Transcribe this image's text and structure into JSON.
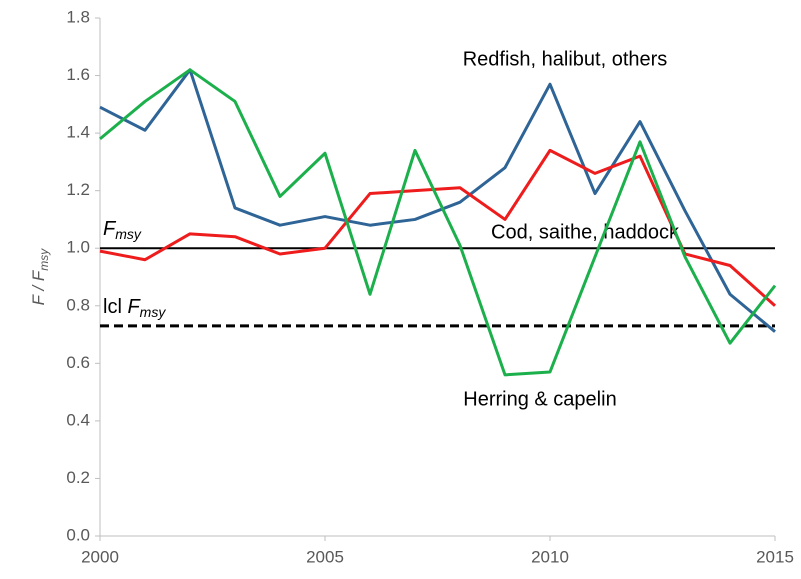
{
  "chart_data": {
    "type": "line",
    "x": [
      2000,
      2001,
      2002,
      2003,
      2004,
      2005,
      2006,
      2007,
      2008,
      2009,
      2010,
      2011,
      2012,
      2013,
      2014,
      2015
    ],
    "series": [
      {
        "name": "Redfish, halibut, others",
        "color": "#2e6496",
        "values": [
          1.49,
          1.41,
          1.62,
          1.14,
          1.08,
          1.11,
          1.08,
          1.1,
          1.16,
          1.28,
          1.57,
          1.19,
          1.44,
          1.13,
          0.84,
          0.71
        ]
      },
      {
        "name": "Cod, saithe, haddock",
        "color": "#ee1c1c",
        "values": [
          0.99,
          0.96,
          1.05,
          1.04,
          0.98,
          1.0,
          1.19,
          1.2,
          1.21,
          1.1,
          1.34,
          1.26,
          1.32,
          0.98,
          0.94,
          0.8
        ]
      },
      {
        "name": "Herring & capelin",
        "color": "#1cb04c",
        "values": [
          1.38,
          1.51,
          1.62,
          1.51,
          1.18,
          1.33,
          0.84,
          1.34,
          1.01,
          0.56,
          0.57,
          0.97,
          1.37,
          0.97,
          0.67,
          0.87
        ]
      }
    ],
    "hlines": [
      {
        "value": 1.0,
        "prefix": "",
        "label": "F",
        "sub": "msy",
        "style": "solid"
      },
      {
        "value": 0.73,
        "prefix": "lcl ",
        "label": "F",
        "sub": "msy",
        "style": "dashed"
      }
    ],
    "ylabel": {
      "main": "F / F",
      "sub": "msy"
    },
    "xlim": [
      2000,
      2015
    ],
    "xticks": [
      2000,
      2005,
      2010,
      2015
    ],
    "ylim": [
      0,
      1.8
    ],
    "yticks": [
      {
        "value": 0,
        "label": "0.0"
      },
      {
        "value": 0.2,
        "label": "0.2"
      },
      {
        "value": 0.4,
        "label": "0.4"
      },
      {
        "value": 0.6,
        "label": "0.6"
      },
      {
        "value": 0.8,
        "label": "0.8"
      },
      {
        "value": 1.0,
        "label": "1.0"
      },
      {
        "value": 1.2,
        "label": "1.2"
      },
      {
        "value": 1.4,
        "label": "1.4"
      },
      {
        "value": 1.6,
        "label": "1.6"
      },
      {
        "value": 1.8,
        "label": "1.8"
      }
    ]
  }
}
